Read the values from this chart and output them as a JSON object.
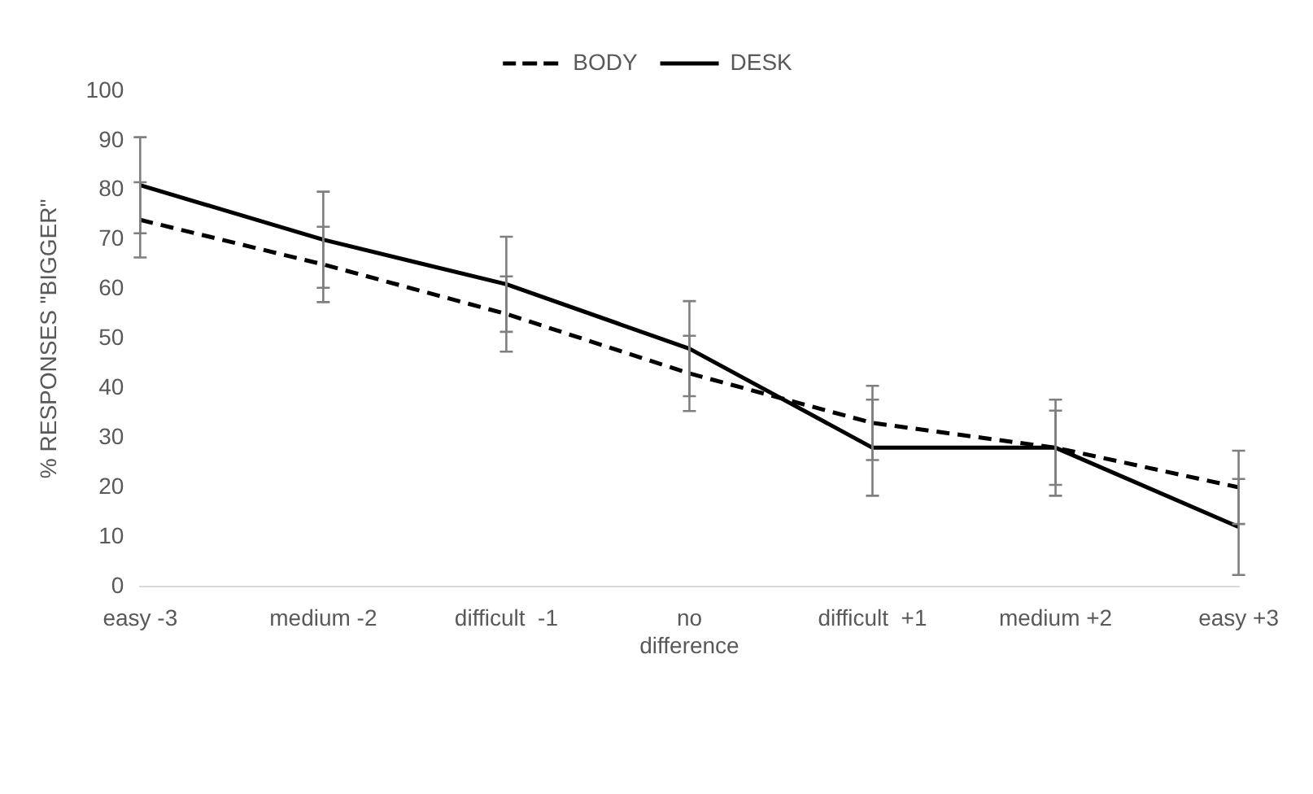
{
  "chart_data": {
    "type": "line",
    "ylabel": "% RESPONSES \"BIGGER\"",
    "categories": [
      "easy -3",
      "medium -2",
      "difficult  -1",
      "no difference",
      "difficult  +1",
      "medium +2",
      "easy +3"
    ],
    "series": [
      {
        "name": "BODY",
        "color": "#000000",
        "line_style": "dashed",
        "values": [
          74,
          65,
          55,
          43,
          33,
          28,
          20
        ],
        "errors": [
          7.6,
          7.6,
          7.6,
          7.6,
          7.5,
          7.5,
          7.4
        ]
      },
      {
        "name": "DESK",
        "color": "#000000",
        "line_style": "solid",
        "values": [
          81,
          70,
          61,
          48,
          28,
          28,
          12
        ],
        "errors": [
          9.7,
          9.7,
          9.6,
          9.6,
          9.7,
          9.7,
          9.7
        ]
      }
    ],
    "ylim": [
      0,
      100
    ],
    "yticks": [
      0,
      10,
      20,
      30,
      40,
      50,
      60,
      70,
      80,
      90,
      100
    ],
    "grid": false,
    "legend": "top",
    "marker": "none"
  }
}
